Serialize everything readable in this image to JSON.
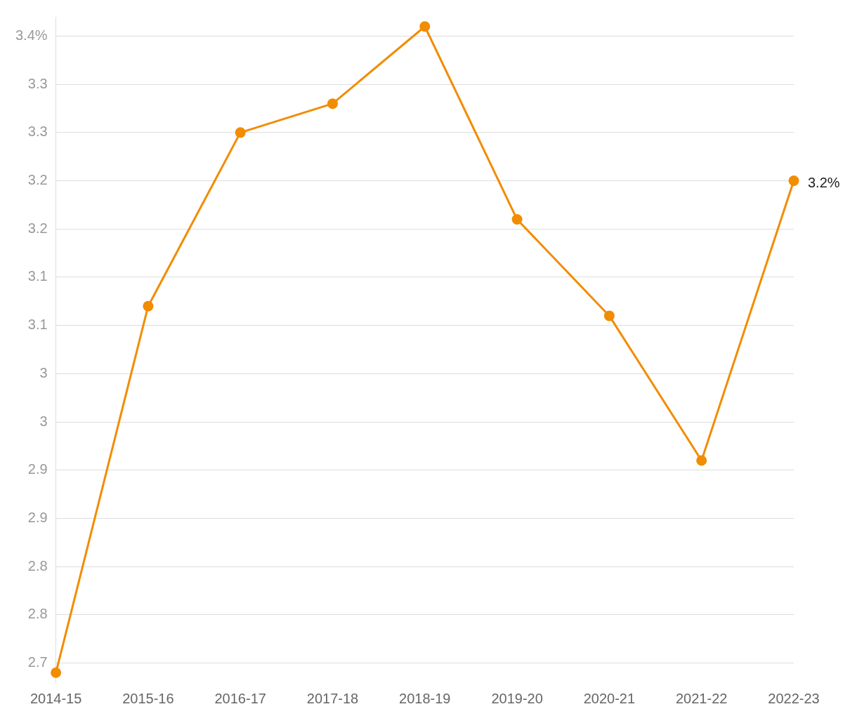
{
  "chart_data": {
    "type": "line",
    "categories": [
      "2014-15",
      "2015-16",
      "2016-17",
      "2017-18",
      "2018-19",
      "2019-20",
      "2020-21",
      "2021-22",
      "2022-23"
    ],
    "series": [
      {
        "color": "#f28c00",
        "values": [
          2.74,
          3.12,
          3.3,
          3.33,
          3.41,
          3.21,
          3.11,
          2.96,
          3.25
        ],
        "value_labels": [
          null,
          null,
          null,
          null,
          null,
          null,
          null,
          null,
          "3.2%"
        ]
      }
    ],
    "ylim": [
      2.73,
      3.42
    ],
    "yticks": [
      {
        "value": 2.75,
        "label": "2.7"
      },
      {
        "value": 2.8,
        "label": "2.8"
      },
      {
        "value": 2.85,
        "label": "2.8"
      },
      {
        "value": 2.9,
        "label": "2.9"
      },
      {
        "value": 2.95,
        "label": "2.9"
      },
      {
        "value": 3.0,
        "label": "3"
      },
      {
        "value": 3.05,
        "label": "3"
      },
      {
        "value": 3.1,
        "label": "3.1"
      },
      {
        "value": 3.15,
        "label": "3.1"
      },
      {
        "value": 3.2,
        "label": "3.2"
      },
      {
        "value": 3.25,
        "label": "3.2"
      },
      {
        "value": 3.3,
        "label": "3.3"
      },
      {
        "value": 3.35,
        "label": "3.3"
      },
      {
        "value": 3.4,
        "label": "3.4%"
      }
    ],
    "grid": "y",
    "legend": false,
    "marker": "circle",
    "line_style": "solid"
  }
}
